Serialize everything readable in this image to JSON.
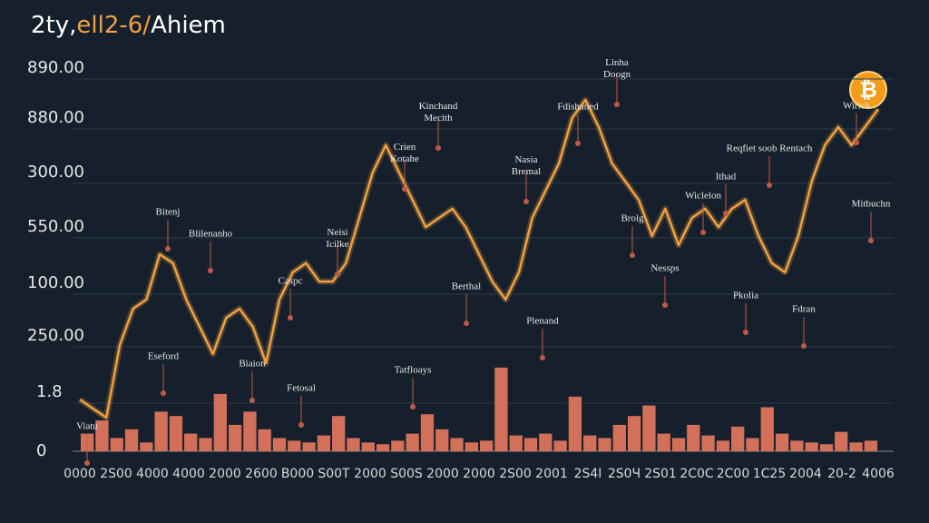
{
  "chart_data": {
    "type": "line",
    "title_parts": [
      "2ty,",
      "ell2-6/",
      "Ahiem"
    ],
    "badge": "₿",
    "y_labels": [
      "890.00",
      "880.00",
      "300.00",
      "550.00",
      "100.00",
      "250.00",
      "1.8",
      "0"
    ],
    "x_labels": [
      "0000",
      "2S00",
      "4000",
      "4000",
      "2000",
      "2600",
      "B000",
      "S00T",
      "2000",
      "S00S",
      "2000",
      "2000",
      "2S00",
      "2001",
      "2S4I",
      "2S0Ч",
      "2S01",
      "2C0C",
      "2C00",
      "1C25",
      "2004",
      "20-2",
      "4006"
    ],
    "ylim": [
      0,
      100
    ],
    "y2lim": [
      0,
      100
    ],
    "series": [
      {
        "name": "price",
        "color": "#f2a040",
        "values": [
          13.5,
          11.1,
          8.8,
          27.7,
          37.2,
          39.6,
          51.4,
          49.1,
          39.6,
          32.5,
          25.4,
          34.8,
          37.2,
          32.5,
          23.0,
          39.6,
          46.7,
          49.1,
          44.3,
          44.3,
          49.1,
          60.9,
          72.7,
          79.9,
          72.7,
          65.6,
          58.5,
          60.9,
          63.3,
          58.5,
          51.4,
          44.3,
          39.6,
          46.7,
          60.9,
          68.0,
          75.1,
          87.0,
          91.7,
          84.6,
          75.1,
          70.4,
          65.6,
          56.2,
          63.3,
          53.8,
          60.9,
          63.3,
          58.5,
          63.3,
          65.6,
          56.2,
          49.1,
          46.7,
          56.2,
          70.4,
          79.9,
          84.6,
          79.9,
          84.6,
          89.3
        ]
      },
      {
        "name": "volume",
        "color": "#d2705a",
        "axis": "y2",
        "values": [
          20,
          35,
          15,
          25,
          10,
          45,
          40,
          20,
          15,
          65,
          30,
          45,
          25,
          15,
          12,
          10,
          18,
          40,
          15,
          10,
          8,
          12,
          20,
          42,
          25,
          15,
          10,
          12,
          95,
          18,
          15,
          20,
          12,
          62,
          18,
          15,
          30,
          40,
          52,
          20,
          15,
          30,
          18,
          12,
          28,
          15,
          50,
          20,
          12,
          10,
          8,
          22,
          10,
          12
        ]
      }
    ],
    "annotations": [
      "Linha Doogn",
      "Kinchand Mecith",
      "Fdishaned",
      "Wirich",
      "Reqfiet soob Rentach",
      "Crien Kotahe",
      "Nasia Bremal",
      "Ithad",
      "Wiclelon",
      "Bitenj",
      "Blilenanho",
      "Neisi Icilke",
      "Caspc",
      "Mitbuchn",
      "Nessps",
      "Pkolia",
      "Fdran",
      "Plenand",
      "Tatfloays",
      "Fetosal",
      "Eseford",
      "Biaion",
      "Berthal",
      "Brolg",
      "Viatu"
    ]
  }
}
